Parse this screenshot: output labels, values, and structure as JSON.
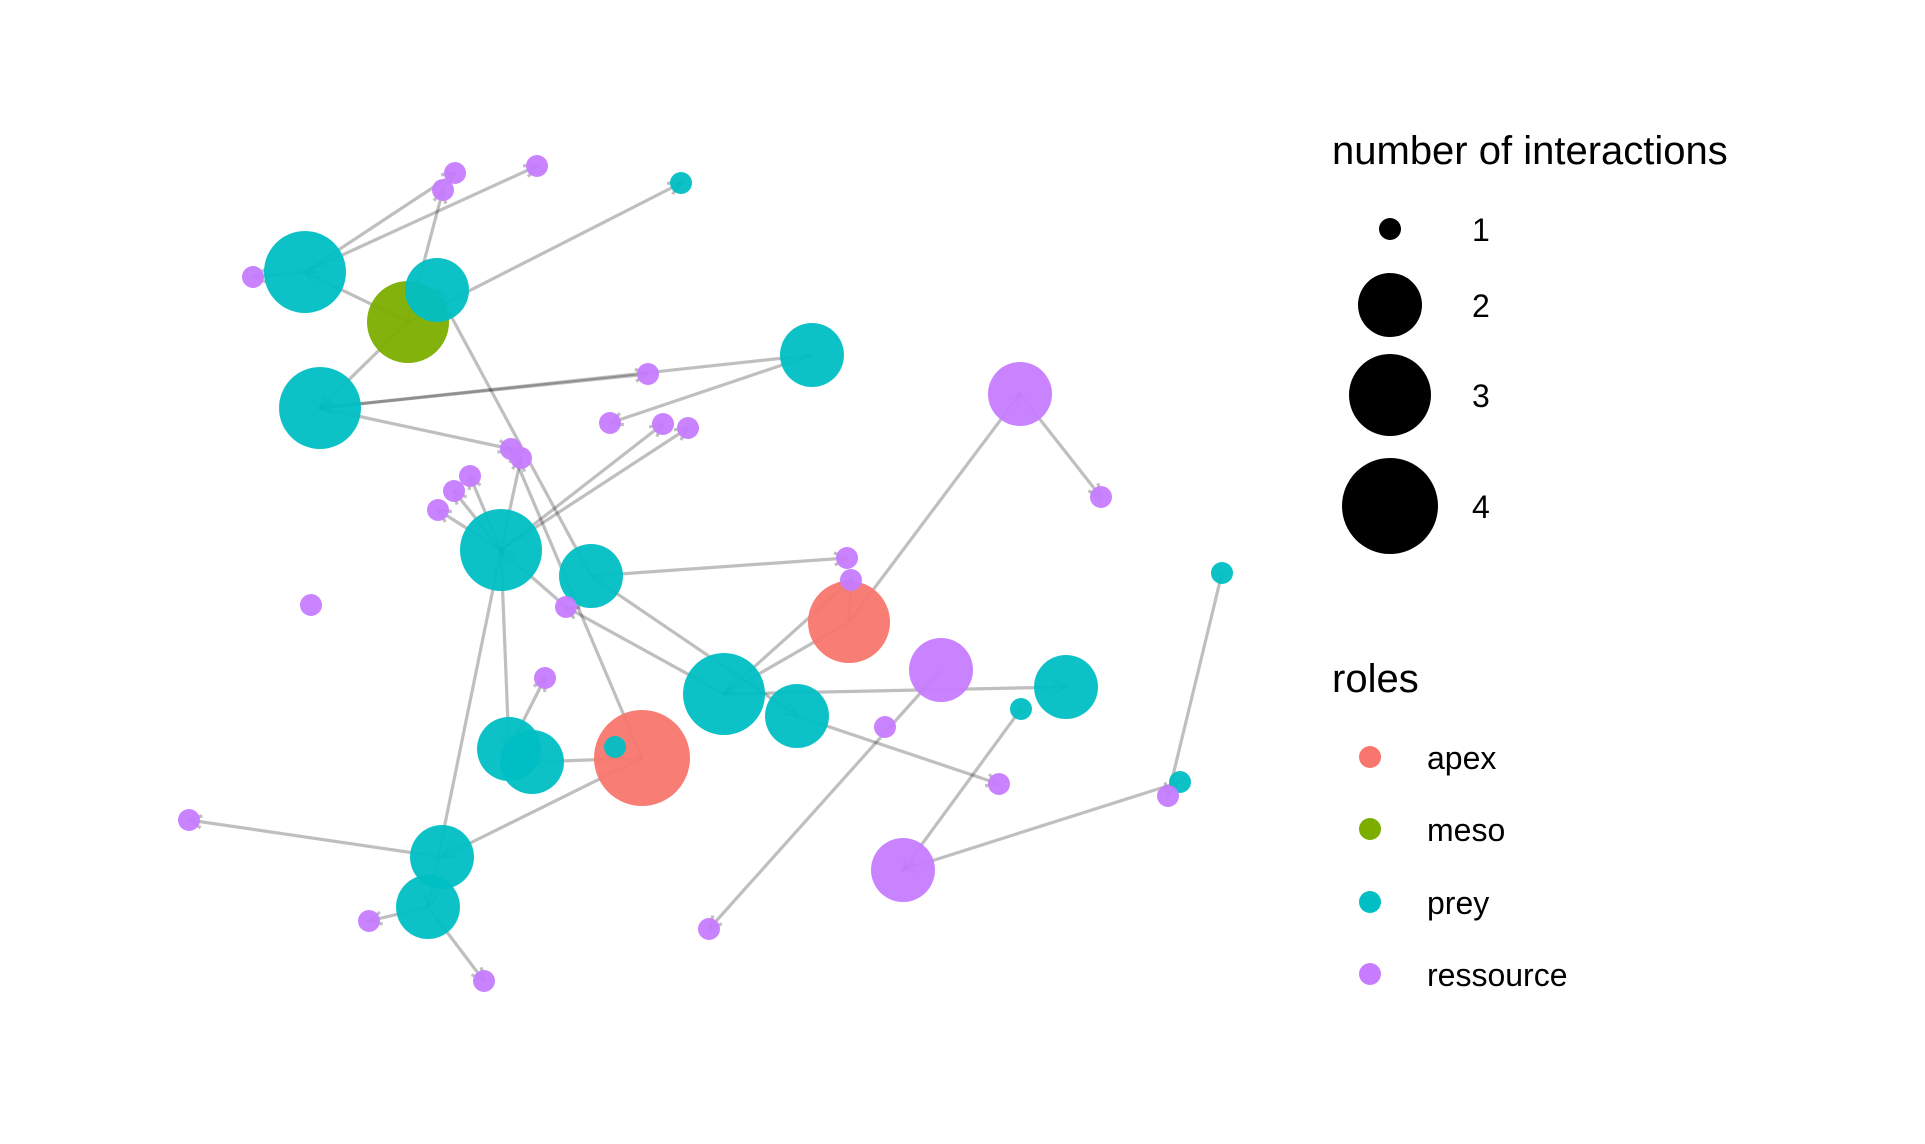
{
  "legend_size": {
    "title": "number of interactions",
    "items": [
      {
        "value": 1,
        "label": "1"
      },
      {
        "value": 2,
        "label": "2"
      },
      {
        "value": 3,
        "label": "3"
      },
      {
        "value": 4,
        "label": "4"
      }
    ]
  },
  "legend_roles": {
    "title": "roles",
    "items": [
      {
        "role": "apex",
        "label": "apex",
        "color": "#F8766D"
      },
      {
        "role": "meso",
        "label": "meso",
        "color": "#7CAE00"
      },
      {
        "role": "prey",
        "label": "prey",
        "color": "#00BFC4"
      },
      {
        "role": "ressource",
        "label": "ressource",
        "color": "#C77CFF"
      }
    ]
  }
}
